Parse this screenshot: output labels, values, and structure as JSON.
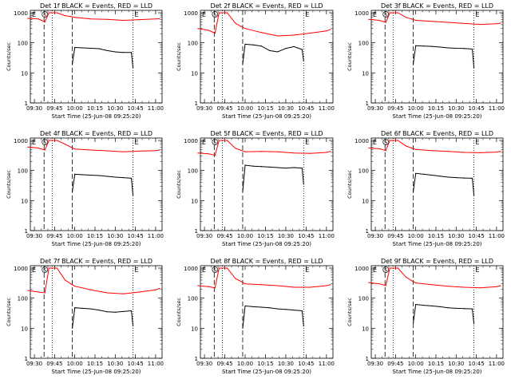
{
  "colors": {
    "events": "#000000",
    "lld": "#ff0000",
    "axis": "#000000",
    "background": "#ffffff"
  },
  "shared": {
    "ylabel": "Counts/sec",
    "xlabel": "Start Time (25-Jun-08 09:25:20)",
    "y_ticks": [
      "1",
      "10",
      "100",
      "1000"
    ],
    "ylim": [
      1,
      1200
    ],
    "x_ticks": [
      "09:30",
      "09:45",
      "10:00",
      "10:15",
      "10:30",
      "10:45",
      "11:00"
    ],
    "x_ticks_alt": [
      "09:30",
      "09:45",
      "10:00",
      "10:15",
      "10:30",
      "10:45",
      "11:00"
    ],
    "markers": {
      "eclipse_start": "E",
      "saa": "S",
      "eclipse_end": "E"
    }
  },
  "chart_data": [
    {
      "type": "line",
      "title": "Det 1f BLACK = Events, RED = LLD",
      "series": [
        {
          "name": "Events",
          "color": "#000000",
          "x": [
            9.97,
            10.0,
            10.1,
            10.2,
            10.3,
            10.4,
            10.5,
            10.6,
            10.7,
            10.72
          ],
          "values": [
            20,
            70,
            68,
            66,
            64,
            55,
            50,
            48,
            48,
            15
          ]
        },
        {
          "name": "LLD",
          "color": "#ff0000",
          "x": [
            9.42,
            9.55,
            9.63,
            9.68,
            9.78,
            9.88,
            9.95,
            10.0,
            10.2,
            10.4,
            10.6,
            10.8,
            11.0,
            11.05
          ],
          "values": [
            650,
            620,
            500,
            1000,
            1000,
            800,
            750,
            700,
            620,
            600,
            560,
            590,
            620,
            630
          ]
        }
      ]
    },
    {
      "type": "line",
      "title": "Det 2f BLACK = Events, RED = LLD",
      "series": [
        {
          "name": "Events",
          "color": "#000000",
          "x": [
            9.97,
            10.0,
            10.1,
            10.2,
            10.3,
            10.4,
            10.5,
            10.6,
            10.7,
            10.72
          ],
          "values": [
            20,
            90,
            85,
            78,
            55,
            50,
            65,
            75,
            60,
            25
          ]
        },
        {
          "name": "LLD",
          "color": "#ff0000",
          "x": [
            9.42,
            9.55,
            9.63,
            9.68,
            9.78,
            9.88,
            9.95,
            10.0,
            10.2,
            10.4,
            10.6,
            10.8,
            11.0,
            11.05
          ],
          "values": [
            300,
            260,
            210,
            1000,
            1000,
            450,
            350,
            300,
            220,
            170,
            180,
            210,
            250,
            280
          ]
        }
      ]
    },
    {
      "type": "line",
      "title": "Det 3f BLACK = Events, RED = LLD",
      "series": [
        {
          "name": "Events",
          "color": "#000000",
          "x": [
            9.97,
            10.0,
            10.1,
            10.2,
            10.3,
            10.4,
            10.5,
            10.6,
            10.7,
            10.72
          ],
          "values": [
            20,
            80,
            78,
            76,
            72,
            68,
            66,
            65,
            62,
            15
          ]
        },
        {
          "name": "LLD",
          "color": "#ff0000",
          "x": [
            9.42,
            9.55,
            9.63,
            9.68,
            9.78,
            9.88,
            9.95,
            10.0,
            10.2,
            10.4,
            10.6,
            10.8,
            11.0,
            11.05
          ],
          "values": [
            600,
            560,
            480,
            1000,
            1000,
            700,
            620,
            560,
            520,
            480,
            440,
            410,
            430,
            450
          ]
        }
      ]
    },
    {
      "type": "line",
      "title": "Det 4f BLACK = Events, RED = LLD",
      "series": [
        {
          "name": "Events",
          "color": "#000000",
          "x": [
            9.97,
            10.0,
            10.1,
            10.2,
            10.3,
            10.4,
            10.5,
            10.6,
            10.7,
            10.72
          ],
          "values": [
            20,
            75,
            72,
            70,
            68,
            64,
            60,
            58,
            55,
            15
          ]
        },
        {
          "name": "LLD",
          "color": "#ff0000",
          "x": [
            9.42,
            9.55,
            9.63,
            9.68,
            9.78,
            9.88,
            9.95,
            10.0,
            10.2,
            10.4,
            10.6,
            10.8,
            11.0,
            11.05
          ],
          "values": [
            600,
            560,
            480,
            1000,
            1000,
            750,
            600,
            520,
            480,
            450,
            420,
            440,
            460,
            480
          ]
        }
      ]
    },
    {
      "type": "line",
      "title": "Det 5f BLACK = Events, RED = LLD",
      "series": [
        {
          "name": "Events",
          "color": "#000000",
          "x": [
            9.97,
            10.0,
            10.1,
            10.2,
            10.3,
            10.4,
            10.5,
            10.6,
            10.7,
            10.72
          ],
          "values": [
            20,
            150,
            140,
            135,
            130,
            125,
            120,
            125,
            120,
            35
          ]
        },
        {
          "name": "LLD",
          "color": "#ff0000",
          "x": [
            9.42,
            9.55,
            9.63,
            9.68,
            9.78,
            9.88,
            9.95,
            10.0,
            10.2,
            10.4,
            10.6,
            10.8,
            11.0,
            11.05
          ],
          "values": [
            380,
            360,
            320,
            1000,
            1000,
            550,
            470,
            420,
            430,
            420,
            380,
            370,
            400,
            430
          ]
        }
      ]
    },
    {
      "type": "line",
      "title": "Det 6f BLACK = Events, RED = LLD",
      "series": [
        {
          "name": "Events",
          "color": "#000000",
          "x": [
            9.97,
            10.0,
            10.1,
            10.2,
            10.3,
            10.4,
            10.5,
            10.6,
            10.7,
            10.72
          ],
          "values": [
            20,
            80,
            75,
            70,
            65,
            60,
            58,
            56,
            55,
            15
          ]
        },
        {
          "name": "LLD",
          "color": "#ff0000",
          "x": [
            9.42,
            9.55,
            9.63,
            9.68,
            9.78,
            9.88,
            9.95,
            10.0,
            10.2,
            10.4,
            10.6,
            10.8,
            11.0,
            11.05
          ],
          "values": [
            560,
            530,
            460,
            1000,
            1000,
            650,
            560,
            500,
            460,
            430,
            400,
            390,
            410,
            430
          ]
        }
      ]
    },
    {
      "type": "line",
      "title": "Det 7f BLACK = Events, RED = LLD",
      "series": [
        {
          "name": "Events",
          "color": "#000000",
          "x": [
            9.97,
            10.0,
            10.1,
            10.2,
            10.3,
            10.4,
            10.5,
            10.6,
            10.7,
            10.72
          ],
          "values": [
            10,
            48,
            46,
            44,
            40,
            35,
            34,
            36,
            38,
            12
          ]
        },
        {
          "name": "LLD",
          "color": "#ff0000",
          "x": [
            9.42,
            9.55,
            9.63,
            9.68,
            9.78,
            9.88,
            9.95,
            10.0,
            10.2,
            10.4,
            10.6,
            10.8,
            11.0,
            11.05
          ],
          "values": [
            180,
            160,
            150,
            1000,
            1000,
            400,
            300,
            250,
            190,
            150,
            140,
            160,
            190,
            210
          ]
        }
      ]
    },
    {
      "type": "line",
      "title": "Det 8f BLACK = Events, RED = LLD",
      "series": [
        {
          "name": "Events",
          "color": "#000000",
          "x": [
            9.97,
            10.0,
            10.1,
            10.2,
            10.3,
            10.4,
            10.5,
            10.6,
            10.7,
            10.72
          ],
          "values": [
            10,
            55,
            52,
            50,
            48,
            44,
            42,
            40,
            38,
            12
          ]
        },
        {
          "name": "LLD",
          "color": "#ff0000",
          "x": [
            9.42,
            9.55,
            9.63,
            9.68,
            9.78,
            9.88,
            9.95,
            10.0,
            10.2,
            10.4,
            10.6,
            10.8,
            11.0,
            11.05
          ],
          "values": [
            260,
            240,
            220,
            1000,
            1000,
            450,
            360,
            300,
            280,
            260,
            230,
            230,
            260,
            280
          ]
        }
      ]
    },
    {
      "type": "line",
      "title": "Det 9f BLACK = Events, RED = LLD",
      "series": [
        {
          "name": "Events",
          "color": "#000000",
          "x": [
            9.97,
            10.0,
            10.1,
            10.2,
            10.3,
            10.4,
            10.5,
            10.6,
            10.7,
            10.72
          ],
          "values": [
            15,
            62,
            58,
            55,
            52,
            48,
            46,
            45,
            44,
            14
          ]
        },
        {
          "name": "LLD",
          "color": "#ff0000",
          "x": [
            9.42,
            9.55,
            9.63,
            9.68,
            9.78,
            9.88,
            9.95,
            10.0,
            10.2,
            10.4,
            10.6,
            10.8,
            11.0,
            11.05
          ],
          "values": [
            330,
            300,
            260,
            1000,
            1000,
            500,
            380,
            320,
            280,
            250,
            230,
            220,
            240,
            260
          ]
        }
      ]
    }
  ]
}
